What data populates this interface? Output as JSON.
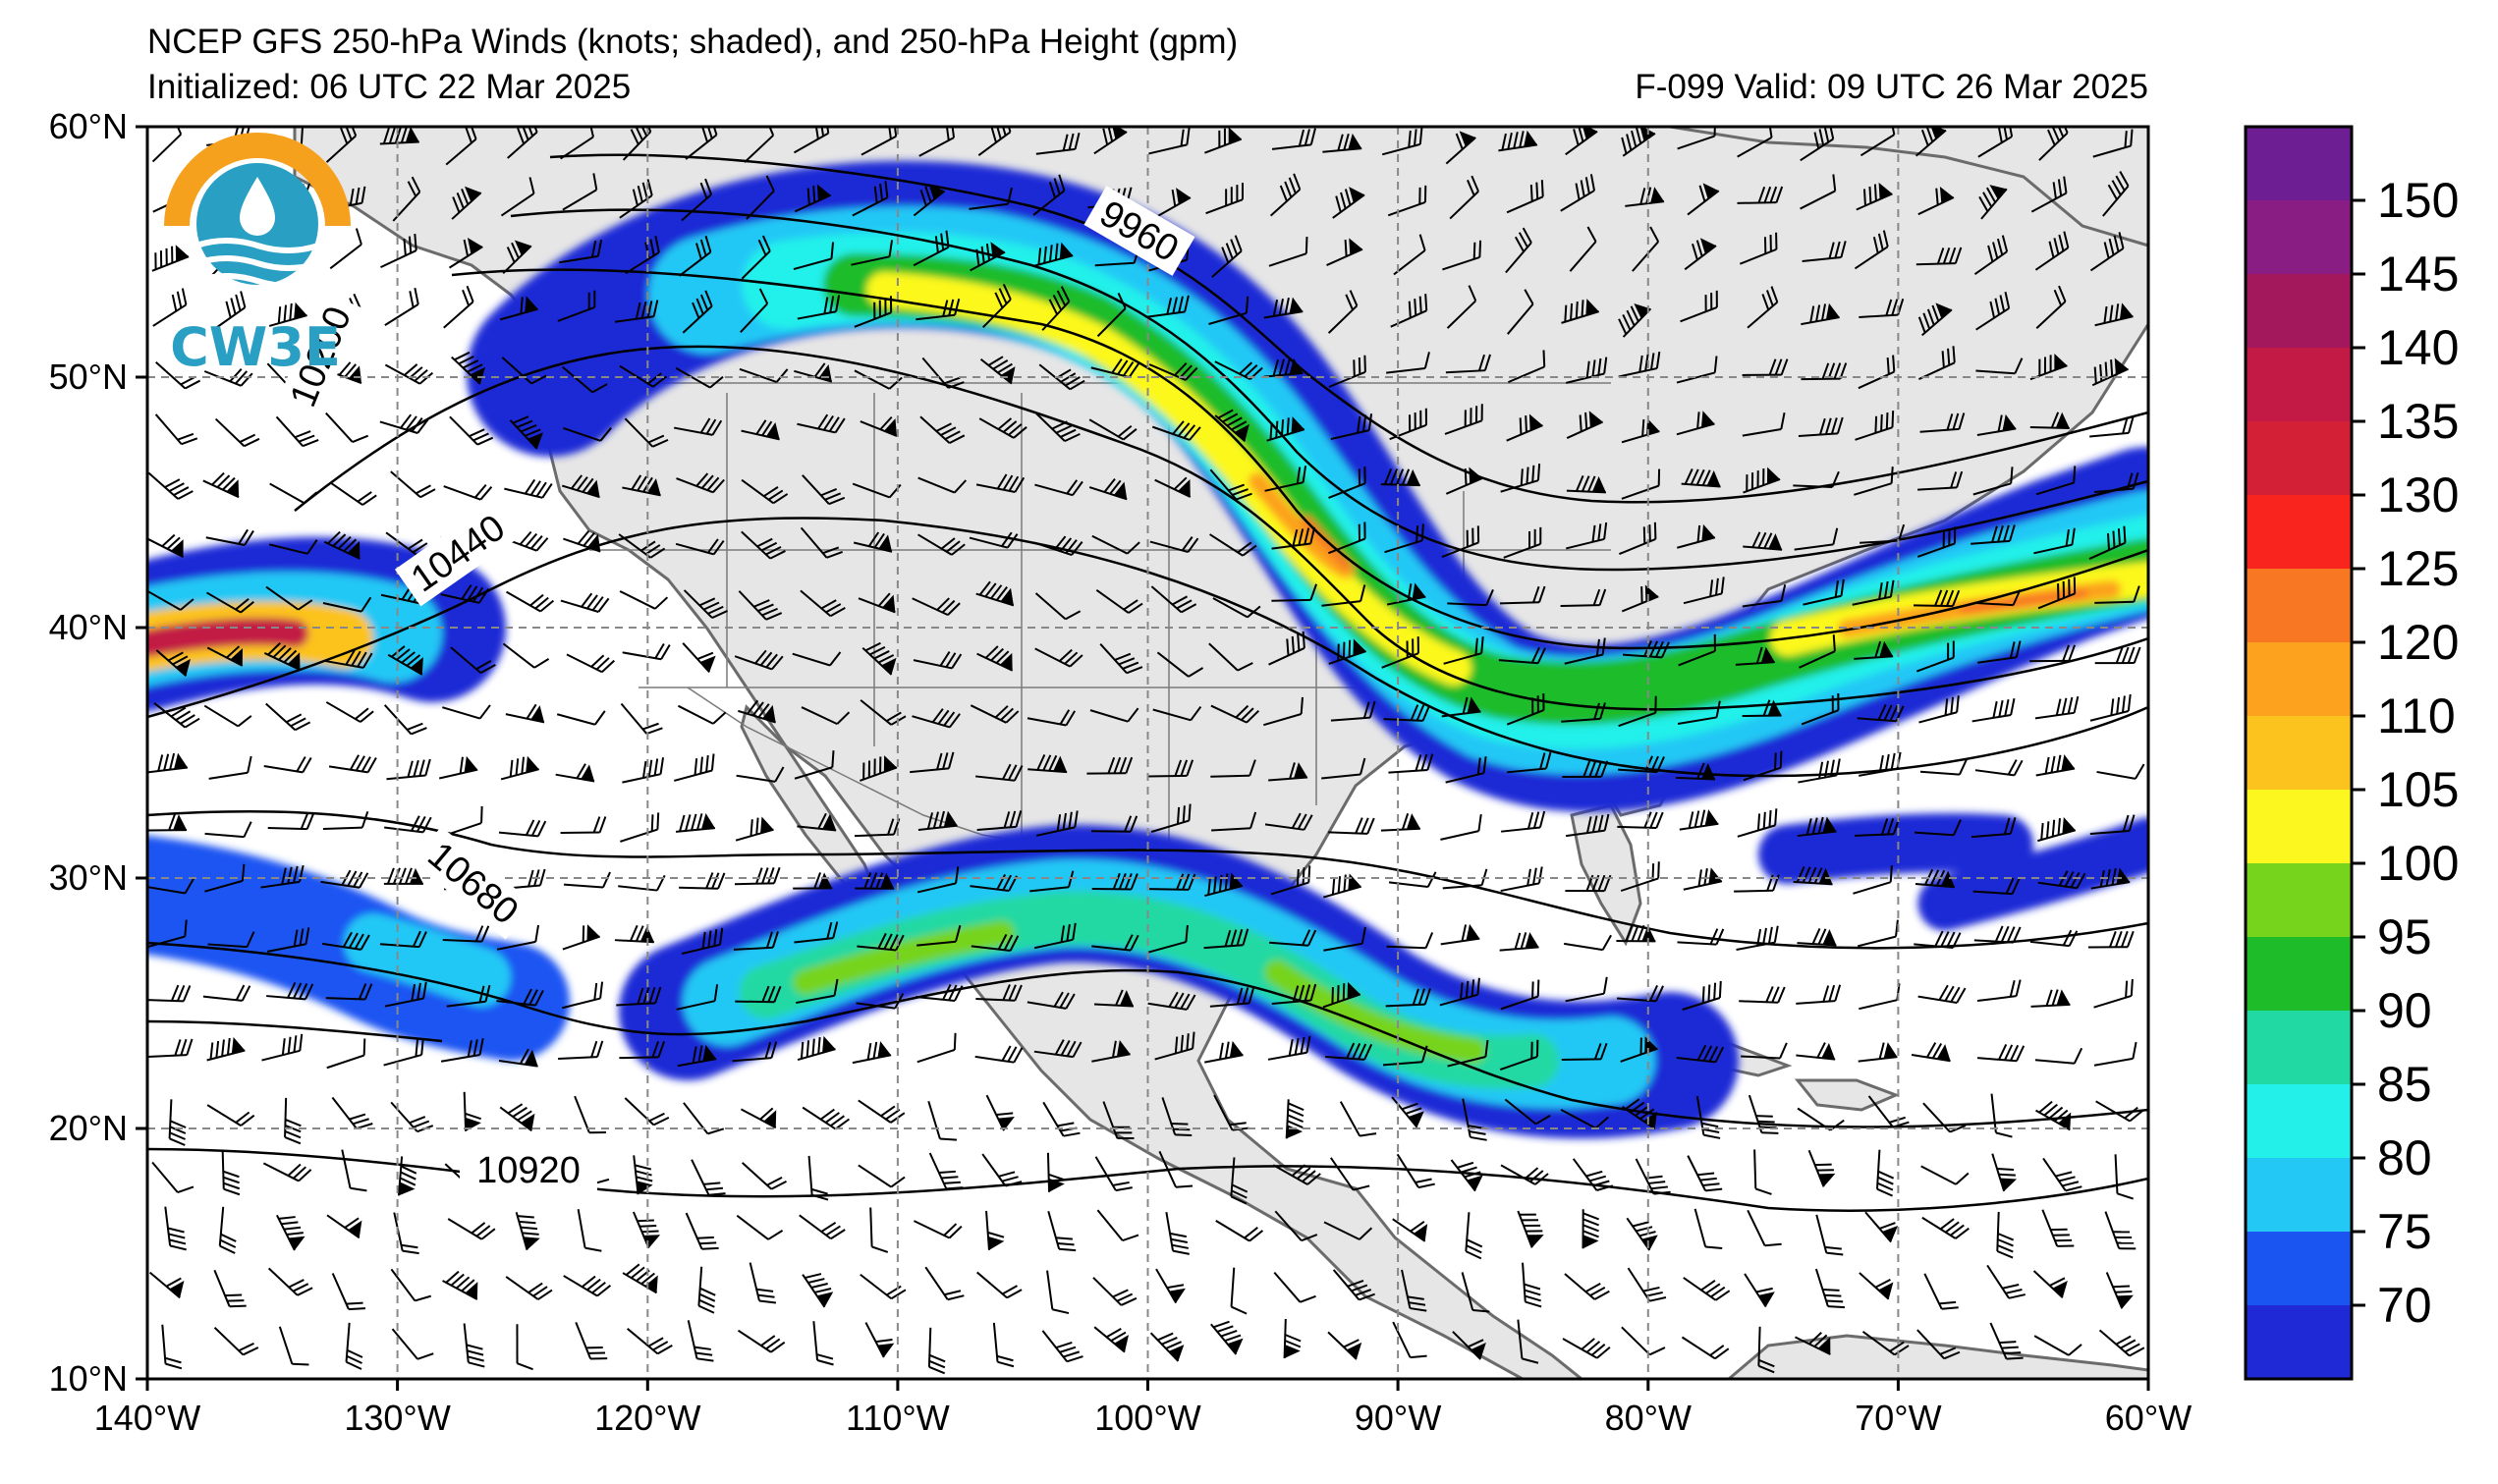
{
  "header": {
    "title": "NCEP GFS 250-hPa Winds (knots; shaded), and 250-hPa Height (gpm)",
    "initialized": "Initialized: 06 UTC 22 Mar 2025",
    "valid": "F-099  Valid: 09 UTC 26 Mar 2025"
  },
  "logo": {
    "text": "CW3E"
  },
  "map": {
    "lon_ticks": [
      "140°W",
      "130°W",
      "120°W",
      "110°W",
      "100°W",
      "90°W",
      "80°W",
      "70°W",
      "60°W"
    ],
    "lat_ticks": [
      "60°N",
      "50°N",
      "40°N",
      "30°N",
      "20°N",
      "10°N"
    ],
    "contour_labels": [
      "9960",
      "10200",
      "10440",
      "10680",
      "10920"
    ],
    "jet_colors": [
      "#1f2ad6",
      "#1a55f2",
      "#23c8f5",
      "#24f0ea",
      "#21d9a3",
      "#1fbc2a",
      "#76d41d",
      "#fcf81f",
      "#fcc31f",
      "#fca21e",
      "#f87722",
      "#f8241d",
      "#d42037",
      "#a3175c",
      "#78197e",
      "#6d1e93"
    ],
    "land_color": "#e6e6e6",
    "coast_color": "#6b6b6b"
  },
  "colorbar": {
    "labels": [
      "150",
      "145",
      "140",
      "135",
      "130",
      "125",
      "120",
      "110",
      "105",
      "100",
      "95",
      "90",
      "85",
      "80",
      "75",
      "70"
    ],
    "colors": [
      "#6d1e93",
      "#8a1d83",
      "#a3175c",
      "#c21a45",
      "#d42037",
      "#f8241d",
      "#f87722",
      "#fca21e",
      "#fcc31f",
      "#fcf81f",
      "#76d41d",
      "#1fbc2a",
      "#21d9a3",
      "#24f0ea",
      "#23c8f5",
      "#1a55f2",
      "#1f2ad6"
    ]
  }
}
